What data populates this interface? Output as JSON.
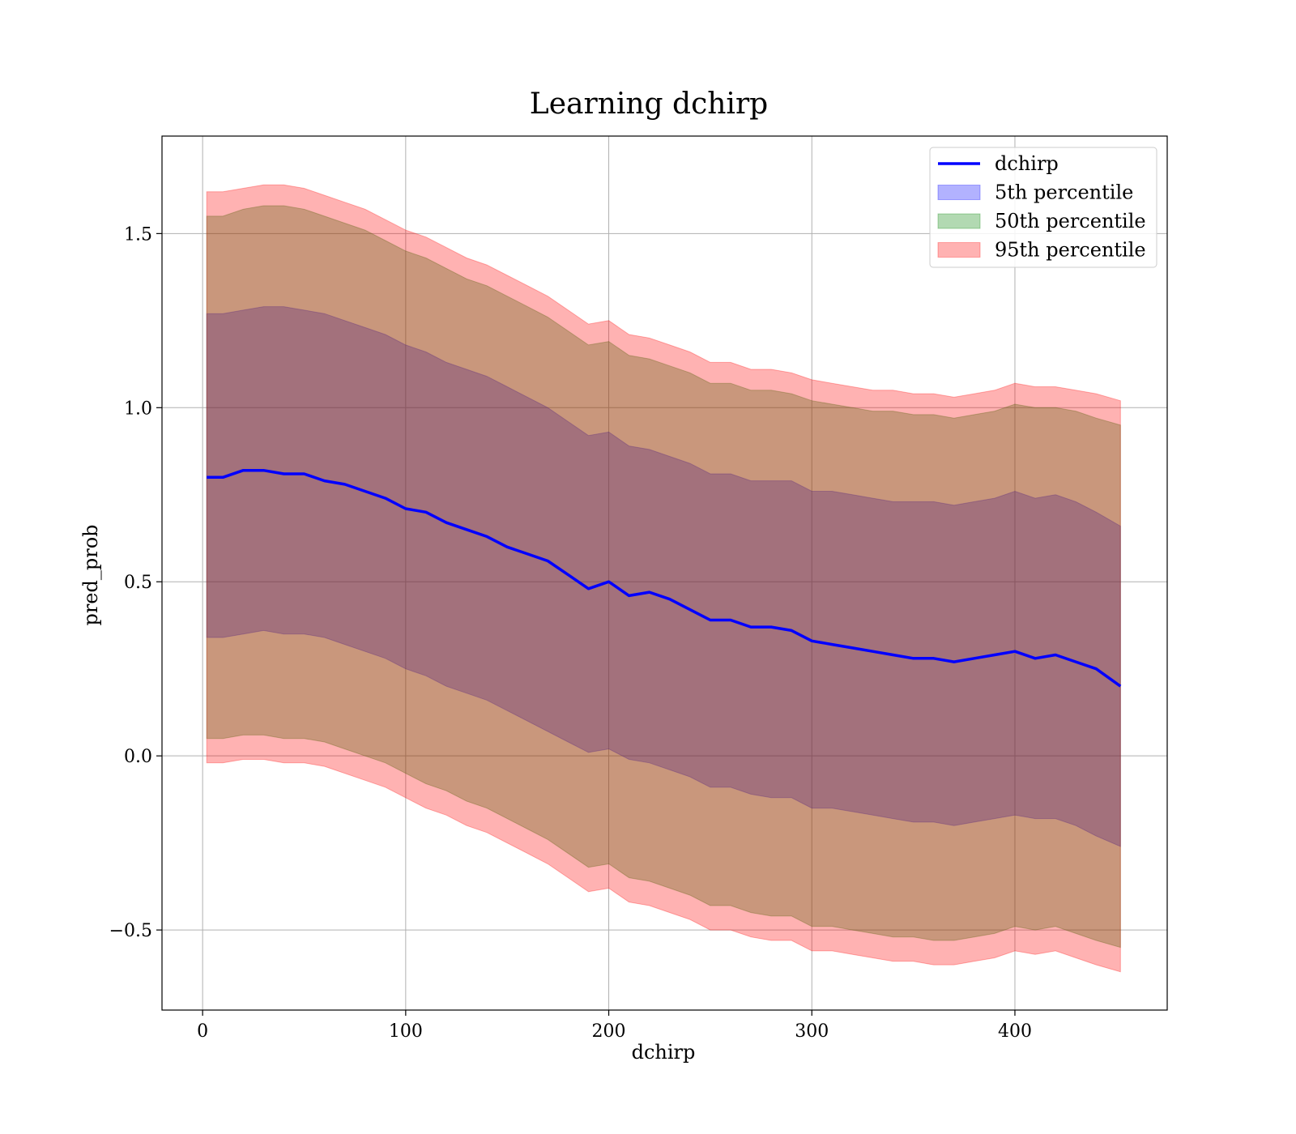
{
  "chart_data": {
    "type": "area",
    "title": "Learning dchirp",
    "xlabel": "dchirp",
    "ylabel": "pred_prob",
    "xlim": [
      -20,
      475
    ],
    "ylim": [
      -0.73,
      1.78
    ],
    "xticks": [
      0,
      100,
      200,
      300,
      400
    ],
    "xtick_labels": [
      "0",
      "100",
      "200",
      "300",
      "400"
    ],
    "yticks": [
      -0.5,
      0.0,
      0.5,
      1.0,
      1.5
    ],
    "ytick_labels": [
      "−0.5",
      "0.0",
      "0.5",
      "1.0",
      "1.5"
    ],
    "grid": true,
    "legend_position": "top-right",
    "x": [
      2,
      10,
      20,
      30,
      40,
      50,
      60,
      70,
      80,
      90,
      100,
      110,
      120,
      130,
      140,
      150,
      160,
      170,
      180,
      190,
      200,
      210,
      220,
      230,
      240,
      250,
      260,
      270,
      280,
      290,
      300,
      310,
      320,
      330,
      340,
      350,
      360,
      370,
      380,
      390,
      400,
      410,
      420,
      430,
      440,
      452
    ],
    "series": [
      {
        "name": "dchirp",
        "kind": "line",
        "color": "#0000ff",
        "values": [
          0.8,
          0.8,
          0.82,
          0.82,
          0.81,
          0.81,
          0.79,
          0.78,
          0.76,
          0.74,
          0.71,
          0.7,
          0.67,
          0.65,
          0.63,
          0.6,
          0.58,
          0.56,
          0.52,
          0.48,
          0.5,
          0.46,
          0.47,
          0.45,
          0.42,
          0.39,
          0.39,
          0.37,
          0.37,
          0.36,
          0.33,
          0.32,
          0.31,
          0.3,
          0.29,
          0.28,
          0.28,
          0.27,
          0.28,
          0.29,
          0.3,
          0.28,
          0.29,
          0.27,
          0.25,
          0.2
        ]
      },
      {
        "name": "5th percentile",
        "kind": "band",
        "color": "#0000ff",
        "upper": [
          1.27,
          1.27,
          1.28,
          1.29,
          1.29,
          1.28,
          1.27,
          1.25,
          1.23,
          1.21,
          1.18,
          1.16,
          1.13,
          1.11,
          1.09,
          1.06,
          1.03,
          1.0,
          0.96,
          0.92,
          0.93,
          0.89,
          0.88,
          0.86,
          0.84,
          0.81,
          0.81,
          0.79,
          0.79,
          0.79,
          0.76,
          0.76,
          0.75,
          0.74,
          0.73,
          0.73,
          0.73,
          0.72,
          0.73,
          0.74,
          0.76,
          0.74,
          0.75,
          0.73,
          0.7,
          0.66
        ],
        "lower": [
          0.34,
          0.34,
          0.35,
          0.36,
          0.35,
          0.35,
          0.34,
          0.32,
          0.3,
          0.28,
          0.25,
          0.23,
          0.2,
          0.18,
          0.16,
          0.13,
          0.1,
          0.07,
          0.04,
          0.01,
          0.02,
          -0.01,
          -0.02,
          -0.04,
          -0.06,
          -0.09,
          -0.09,
          -0.11,
          -0.12,
          -0.12,
          -0.15,
          -0.15,
          -0.16,
          -0.17,
          -0.18,
          -0.19,
          -0.19,
          -0.2,
          -0.19,
          -0.18,
          -0.17,
          -0.18,
          -0.18,
          -0.2,
          -0.23,
          -0.26
        ]
      },
      {
        "name": "50th percentile",
        "kind": "band",
        "color": "#008000",
        "upper": [
          1.55,
          1.55,
          1.57,
          1.58,
          1.58,
          1.57,
          1.55,
          1.53,
          1.51,
          1.48,
          1.45,
          1.43,
          1.4,
          1.37,
          1.35,
          1.32,
          1.29,
          1.26,
          1.22,
          1.18,
          1.19,
          1.15,
          1.14,
          1.12,
          1.1,
          1.07,
          1.07,
          1.05,
          1.05,
          1.04,
          1.02,
          1.01,
          1.0,
          0.99,
          0.99,
          0.98,
          0.98,
          0.97,
          0.98,
          0.99,
          1.01,
          1.0,
          1.0,
          0.99,
          0.97,
          0.95
        ],
        "lower": [
          0.05,
          0.05,
          0.06,
          0.06,
          0.05,
          0.05,
          0.04,
          0.02,
          0.0,
          -0.02,
          -0.05,
          -0.08,
          -0.1,
          -0.13,
          -0.15,
          -0.18,
          -0.21,
          -0.24,
          -0.28,
          -0.32,
          -0.31,
          -0.35,
          -0.36,
          -0.38,
          -0.4,
          -0.43,
          -0.43,
          -0.45,
          -0.46,
          -0.46,
          -0.49,
          -0.49,
          -0.5,
          -0.51,
          -0.52,
          -0.52,
          -0.53,
          -0.53,
          -0.52,
          -0.51,
          -0.49,
          -0.5,
          -0.49,
          -0.51,
          -0.53,
          -0.55
        ]
      },
      {
        "name": "95th percentile",
        "kind": "band",
        "color": "#ff0000",
        "upper": [
          1.62,
          1.62,
          1.63,
          1.64,
          1.64,
          1.63,
          1.61,
          1.59,
          1.57,
          1.54,
          1.51,
          1.49,
          1.46,
          1.43,
          1.41,
          1.38,
          1.35,
          1.32,
          1.28,
          1.24,
          1.25,
          1.21,
          1.2,
          1.18,
          1.16,
          1.13,
          1.13,
          1.11,
          1.11,
          1.1,
          1.08,
          1.07,
          1.06,
          1.05,
          1.05,
          1.04,
          1.04,
          1.03,
          1.04,
          1.05,
          1.07,
          1.06,
          1.06,
          1.05,
          1.04,
          1.02
        ],
        "lower": [
          -0.02,
          -0.02,
          -0.01,
          -0.01,
          -0.02,
          -0.02,
          -0.03,
          -0.05,
          -0.07,
          -0.09,
          -0.12,
          -0.15,
          -0.17,
          -0.2,
          -0.22,
          -0.25,
          -0.28,
          -0.31,
          -0.35,
          -0.39,
          -0.38,
          -0.42,
          -0.43,
          -0.45,
          -0.47,
          -0.5,
          -0.5,
          -0.52,
          -0.53,
          -0.53,
          -0.56,
          -0.56,
          -0.57,
          -0.58,
          -0.59,
          -0.59,
          -0.6,
          -0.6,
          -0.59,
          -0.58,
          -0.56,
          -0.57,
          -0.56,
          -0.58,
          -0.6,
          -0.62
        ]
      }
    ]
  }
}
